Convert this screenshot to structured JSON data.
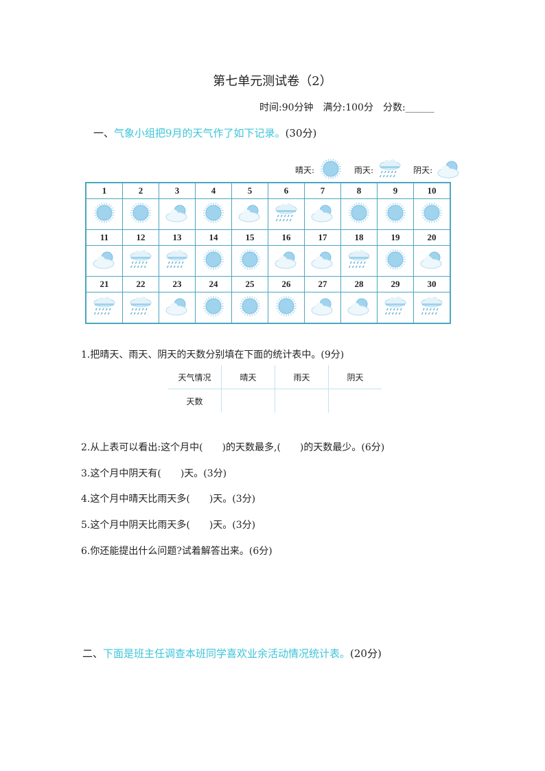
{
  "title": "第七单元测试卷（2）",
  "meta": "时间:90分钟　满分:100分　分数:______",
  "section1": {
    "prefix": "一、",
    "text": "气象小组把9月的天气作了如下记录。",
    "points": "(30分)"
  },
  "legend": [
    {
      "label": "晴天:",
      "icon": "sunny"
    },
    {
      "label": "雨天:",
      "icon": "rainy"
    },
    {
      "label": "阴天:",
      "icon": "cloudy"
    }
  ],
  "weather": [
    "sunny",
    "sunny",
    "cloudy",
    "sunny",
    "cloudy",
    "rainy",
    "cloudy",
    "sunny",
    "sunny",
    "sunny",
    "cloudy",
    "rainy",
    "rainy",
    "sunny",
    "sunny",
    "cloudy",
    "cloudy",
    "rainy",
    "sunny",
    "cloudy",
    "rainy",
    "rainy",
    "cloudy",
    "sunny",
    "sunny",
    "sunny",
    "cloudy",
    "cloudy",
    "rainy",
    "rainy"
  ],
  "colors": {
    "accent": "#3cc4d8",
    "icon": "#9fd3ee",
    "border": "#4aa6c0"
  },
  "q1": "1.把晴天、雨天、阴天的天数分别填在下面的统计表中。(9分)",
  "stats": {
    "headers": [
      "天气情况",
      "晴天",
      "雨天",
      "阴天"
    ],
    "row_label": "天数",
    "values": [
      "",
      "",
      ""
    ]
  },
  "q2": "2.从上表可以看出:这个月中(　　)的天数最多,(　　)的天数最少。(6分)",
  "q3": "3.这个月中阴天有(　　)天。(3分)",
  "q4": "4.这个月中晴天比雨天多(　　)天。(3分)",
  "q5": "5.这个月中阴天比雨天多(　　)天。(3分)",
  "q6": "6.你还能提出什么问题?试着解答出来。(6分)",
  "section2": {
    "prefix": "二、",
    "text": "下面是班主任调查本班同学喜欢业余活动情况统计表。",
    "points": "(20分)"
  }
}
